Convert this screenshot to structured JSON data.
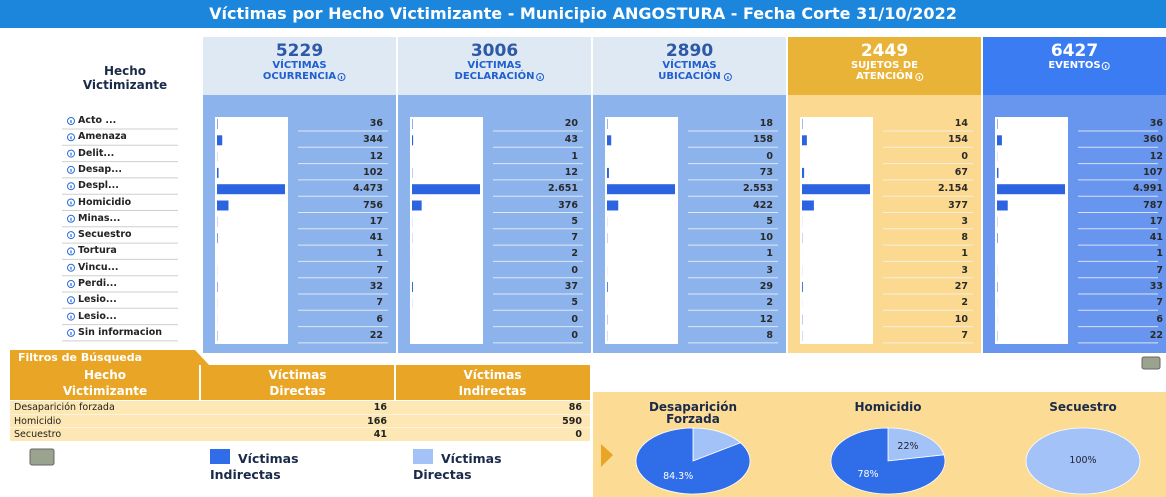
{
  "title": "Víctimas por Hecho Victimizante - Municipio ANGOSTURA - Fecha Corte 31/10/2022",
  "row_header": "Hecho Victimizante",
  "rows": [
    "Acto ...",
    "Amenaza",
    "Delit...",
    "Desap...",
    "Despl...",
    "Homicidio",
    "Minas...",
    "Secuestro",
    "Tortura",
    "Vincu...",
    "Perdi...",
    "Lesio...",
    "Lesio...",
    "Sin informacion"
  ],
  "panels": [
    {
      "total": 5229,
      "label": [
        "VÍCTIMAS",
        "OCURRENCIA"
      ],
      "values": [
        36,
        344,
        12,
        102,
        4473,
        756,
        17,
        41,
        1,
        7,
        32,
        7,
        6,
        22
      ],
      "value_labels": [
        "36",
        "344",
        "12",
        "102",
        "4.473",
        "756",
        "17",
        "41",
        "1",
        "7",
        "32",
        "7",
        "6",
        "22"
      ]
    },
    {
      "total": 3006,
      "label": [
        "VÍCTIMAS",
        "DECLARACIÓN"
      ],
      "values": [
        20,
        43,
        1,
        12,
        2651,
        376,
        5,
        7,
        2,
        0,
        37,
        5,
        0,
        0
      ],
      "value_labels": [
        "20",
        "43",
        "1",
        "12",
        "2.651",
        "376",
        "5",
        "7",
        "2",
        "0",
        "37",
        "5",
        "0",
        "0"
      ]
    },
    {
      "total": 2890,
      "label": [
        "VÍCTIMAS",
        "UBICACIÓN"
      ],
      "values": [
        18,
        158,
        0,
        73,
        2553,
        422,
        5,
        10,
        1,
        3,
        29,
        2,
        12,
        8
      ],
      "value_labels": [
        "18",
        "158",
        "0",
        "73",
        "2.553",
        "422",
        "5",
        "10",
        "1",
        "3",
        "29",
        "2",
        "12",
        "8"
      ]
    },
    {
      "total": 2449,
      "label": [
        "SUJETOS DE",
        "ATENCIÓN"
      ],
      "values": [
        14,
        154,
        0,
        67,
        2154,
        377,
        3,
        8,
        1,
        3,
        27,
        2,
        10,
        7
      ],
      "value_labels": [
        "14",
        "154",
        "0",
        "67",
        "2.154",
        "377",
        "3",
        "8",
        "1",
        "3",
        "27",
        "2",
        "10",
        "7"
      ]
    },
    {
      "total": 6427,
      "label": [
        "EVENTOS"
      ],
      "values": [
        36,
        360,
        12,
        107,
        4991,
        787,
        17,
        41,
        1,
        7,
        33,
        7,
        6,
        22
      ],
      "value_labels": [
        "36",
        "360",
        "12",
        "107",
        "4.991",
        "787",
        "17",
        "41",
        "1",
        "7",
        "33",
        "7",
        "6",
        "22"
      ]
    }
  ],
  "filters": {
    "tab": "Filtros de Búsqueda",
    "headers": [
      "Hecho Victimizante",
      "Víctimas Directas",
      "Víctimas Indirectas"
    ],
    "rows": [
      [
        "Desaparición forzada",
        16,
        86
      ],
      [
        "Homicidio",
        166,
        590
      ],
      [
        "Secuestro",
        41,
        0
      ]
    ]
  },
  "legend": [
    {
      "name": "Víctimas Indirectas",
      "color": "#2f6ee8"
    },
    {
      "name": "Víctimas Directas",
      "color": "#a3c2f7"
    }
  ],
  "pies": [
    {
      "title": "Desaparición Forzada",
      "values": [
        84.3,
        15.7
      ],
      "value_labels": [
        "84.3%",
        null
      ]
    },
    {
      "title": "Homicidio",
      "values": [
        78,
        22
      ],
      "value_labels": [
        "78%",
        "22%"
      ]
    },
    {
      "title": "Secuestro",
      "values": [
        0,
        100
      ],
      "value_labels": [
        null,
        "100%"
      ]
    }
  ]
}
